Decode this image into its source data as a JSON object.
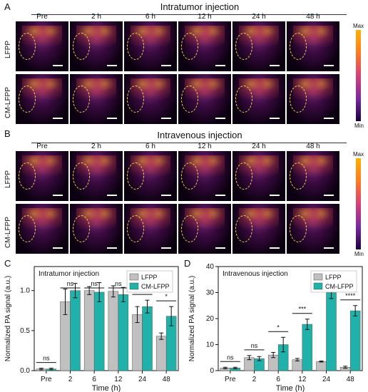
{
  "panels": {
    "A": {
      "letter": "A",
      "title": "Intratumor injection"
    },
    "B": {
      "letter": "B",
      "title": "Intravenous injection"
    },
    "C": {
      "letter": "C"
    },
    "D": {
      "letter": "D"
    }
  },
  "timepoints": [
    "Pre",
    "2 h",
    "6 h",
    "12 h",
    "24 h",
    "48 h"
  ],
  "rows": [
    "LFPP",
    "CM-LFPP"
  ],
  "colorbar": {
    "max": "Max",
    "min": "Min"
  },
  "colors": {
    "lfpp": "#c0c0c0",
    "cm_lfpp": "#20b2aa",
    "ellipse": "#e8e04a"
  },
  "chart_data": [
    {
      "type": "bar",
      "panel": "C",
      "title": "Intratumor injection",
      "xlabel": "Time (h)",
      "ylabel": "Normalized PA signal (a.u.)",
      "categories": [
        "Pre",
        "2",
        "6",
        "12",
        "24",
        "48"
      ],
      "ylim": [
        0,
        1.3
      ],
      "yticks": [
        "0.0",
        "0.5",
        "1.0"
      ],
      "series": [
        {
          "name": "LFPP",
          "values": [
            0.02,
            0.86,
            1.0,
            0.99,
            0.7,
            0.43
          ],
          "errors": [
            0.01,
            0.16,
            0.05,
            0.07,
            0.1,
            0.04
          ]
        },
        {
          "name": "CM-LFPP",
          "values": [
            0.02,
            1.0,
            0.98,
            0.95,
            0.8,
            0.68
          ],
          "errors": [
            0.01,
            0.09,
            0.12,
            0.09,
            0.08,
            0.12
          ]
        }
      ],
      "significance": [
        "ns",
        "ns",
        "ns",
        "ns",
        "ns",
        "*"
      ],
      "legend_position": "top-right"
    },
    {
      "type": "bar",
      "panel": "D",
      "title": "Intravenous injection",
      "xlabel": "Time (h)",
      "ylabel": "Normalized PA signal (a.u.)",
      "categories": [
        "Pre",
        "2",
        "6",
        "12",
        "24",
        "48"
      ],
      "ylim": [
        0,
        40
      ],
      "yticks": [
        "0",
        "10",
        "20",
        "30",
        "40"
      ],
      "series": [
        {
          "name": "LFPP",
          "values": [
            1.0,
            5.0,
            6.0,
            4.2,
            3.5,
            1.3
          ],
          "errors": [
            0.3,
            0.8,
            1.0,
            0.5,
            0.2,
            0.4
          ]
        },
        {
          "name": "CM-LFPP",
          "values": [
            1.0,
            4.6,
            10.0,
            17.8,
            30.0,
            23.0
          ],
          "errors": [
            0.3,
            0.8,
            2.8,
            2.0,
            2.3,
            2.0
          ]
        }
      ],
      "significance": [
        "ns",
        "ns",
        "*",
        "***",
        "****",
        "****"
      ],
      "legend_position": "top-right"
    }
  ]
}
